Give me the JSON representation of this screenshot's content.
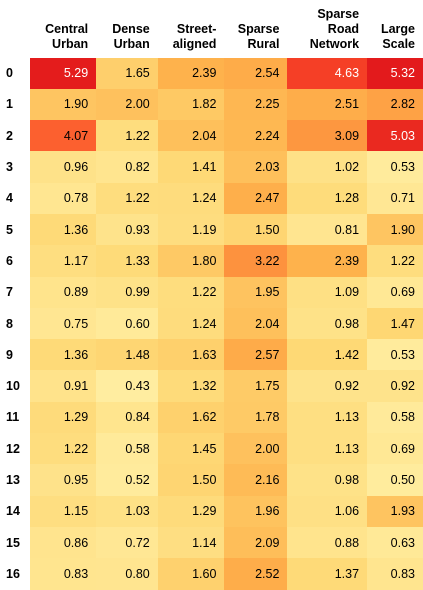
{
  "chart_data": {
    "type": "heatmap",
    "columns": [
      "Central\nUrban",
      "Dense\nUrban",
      "Street-\naligned",
      "Sparse\nRural",
      "Sparse\nRoad\nNetwork",
      "Large\nScale"
    ],
    "rows": [
      "0",
      "1",
      "2",
      "3",
      "4",
      "5",
      "6",
      "7",
      "8",
      "9",
      "10",
      "11",
      "12",
      "13",
      "14",
      "15",
      "16"
    ],
    "values": [
      [
        5.29,
        1.65,
        2.39,
        2.54,
        4.63,
        5.32
      ],
      [
        1.9,
        2.0,
        1.82,
        2.25,
        2.51,
        2.82
      ],
      [
        4.07,
        1.22,
        2.04,
        2.24,
        3.09,
        5.03
      ],
      [
        0.96,
        0.82,
        1.41,
        2.03,
        1.02,
        0.53
      ],
      [
        0.78,
        1.22,
        1.24,
        2.47,
        1.28,
        0.71
      ],
      [
        1.36,
        0.93,
        1.19,
        1.5,
        0.81,
        1.9
      ],
      [
        1.17,
        1.33,
        1.8,
        3.22,
        2.39,
        1.22
      ],
      [
        0.89,
        0.99,
        1.22,
        1.95,
        1.09,
        0.69
      ],
      [
        0.75,
        0.6,
        1.24,
        2.04,
        0.98,
        1.47
      ],
      [
        1.36,
        1.48,
        1.63,
        2.57,
        1.42,
        0.53
      ],
      [
        0.91,
        0.43,
        1.32,
        1.75,
        0.92,
        0.92
      ],
      [
        1.29,
        0.84,
        1.62,
        1.78,
        1.13,
        0.58
      ],
      [
        1.22,
        0.58,
        1.45,
        2.0,
        1.13,
        0.69
      ],
      [
        0.95,
        0.52,
        1.5,
        2.16,
        0.98,
        0.5
      ],
      [
        1.15,
        1.03,
        1.29,
        1.96,
        1.06,
        1.93
      ],
      [
        0.86,
        0.72,
        1.14,
        2.09,
        0.88,
        0.63
      ],
      [
        0.83,
        0.8,
        1.6,
        2.52,
        1.37,
        0.83
      ]
    ],
    "value_format": "2 decimals",
    "colormap": {
      "low": "#ffeda0",
      "mid": "#feb24c",
      "high": "#f03b20"
    },
    "grid": false,
    "legend": "none"
  }
}
